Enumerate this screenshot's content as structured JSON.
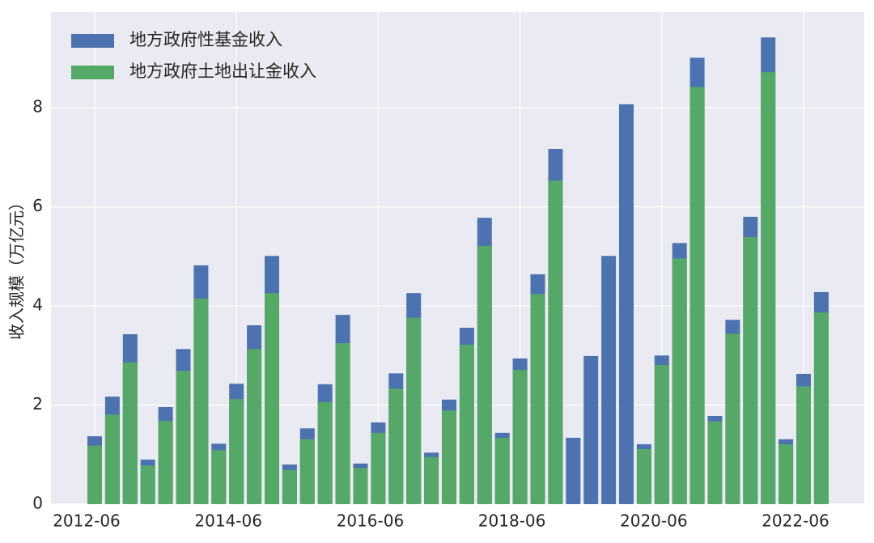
{
  "chart_data": {
    "type": "bar",
    "overlay": true,
    "y_label": "收入规模（万亿元）",
    "categories": [
      "2012-06",
      null,
      null,
      null,
      null,
      null,
      null,
      null,
      "2014-06",
      null,
      null,
      null,
      null,
      null,
      null,
      null,
      "2016-06",
      null,
      null,
      null,
      null,
      null,
      null,
      null,
      "2018-06",
      null,
      null,
      null,
      null,
      null,
      null,
      null,
      "2020-06",
      null,
      null,
      null,
      null,
      null,
      null,
      null,
      "2022-06",
      null
    ],
    "series": [
      {
        "name": "地方政府性基金收入",
        "color": "#4c72b0",
        "values": [
          1.37,
          2.17,
          3.43,
          0.9,
          1.96,
          3.13,
          4.82,
          1.22,
          2.43,
          3.61,
          5.01,
          0.8,
          1.53,
          2.42,
          3.82,
          0.82,
          1.65,
          2.64,
          4.26,
          1.04,
          2.11,
          3.56,
          5.78,
          1.44,
          2.94,
          4.64,
          7.17,
          1.34,
          2.99,
          5.01,
          8.07,
          1.21,
          3.0,
          5.27,
          9.01,
          1.78,
          3.72,
          5.8,
          9.42,
          1.31,
          2.63,
          4.28
        ]
      },
      {
        "name": "地方政府土地出让金收入",
        "color": "#55a868",
        "values": [
          1.18,
          1.81,
          2.86,
          0.78,
          1.68,
          2.69,
          4.15,
          1.09,
          2.12,
          3.13,
          4.26,
          0.69,
          1.31,
          2.06,
          3.25,
          0.73,
          1.44,
          2.33,
          3.76,
          0.95,
          1.89,
          3.22,
          5.21,
          1.34,
          2.71,
          4.24,
          6.53,
          null,
          null,
          null,
          null,
          1.11,
          2.81,
          4.96,
          8.42,
          1.67,
          3.44,
          5.39,
          8.72,
          1.21,
          2.38,
          3.87
        ]
      }
    ],
    "ylim": [
      0,
      9.93
    ],
    "yticks": [
      0,
      2,
      4,
      6,
      8
    ],
    "grid": true,
    "legend": "upper-left"
  }
}
